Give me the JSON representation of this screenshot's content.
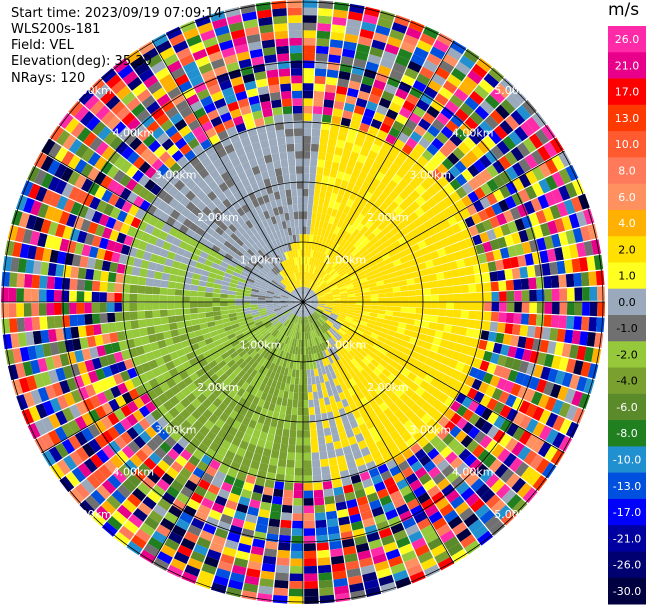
{
  "header": {
    "start_time": "Start time: 2023/09/19 07:09:14",
    "instrument": "WLS200s-181",
    "field": "Field: VEL",
    "elevation": "Elevation(deg): 35.30",
    "nrays": "NRays: 120"
  },
  "colorbar": {
    "unit": "m/s",
    "ticks": [
      "26.0",
      "21.0",
      "17.0",
      "13.0",
      "10.0",
      "8.0",
      "6.0",
      "4.0",
      "2.0",
      "1.0",
      "0.0",
      "-1.0",
      "-2.0",
      "-4.0",
      "-6.0",
      "-8.0",
      "-10.0",
      "-13.0",
      "-17.0",
      "-21.0",
      "-26.0",
      "-30.0"
    ],
    "colors": [
      "#ff2aa8",
      "#e8008a",
      "#ff0000",
      "#ff3a00",
      "#ff5a30",
      "#ff7a5a",
      "#ff9060",
      "#ffb000",
      "#ffe000",
      "#ffff20",
      "#9aaabc",
      "#707070",
      "#96c83c",
      "#7aa030",
      "#5a8a2a",
      "#208020",
      "#2090d0",
      "#0050e0",
      "#0000ff",
      "#0000a0",
      "#000070",
      "#000040"
    ]
  },
  "chart_data": {
    "type": "heatmap",
    "subtype": "ppi-radial-velocity",
    "field": "VEL",
    "units": "m/s",
    "nrays": 120,
    "elevation_deg": 35.3,
    "range_rings_km": [
      1.0,
      2.0,
      3.0,
      4.0,
      5.0
    ],
    "ring_labels": [
      "1.00km",
      "2.00km",
      "3.00km",
      "4.00km",
      "5.00km"
    ],
    "clean_data_max_range_km": 3.0,
    "velocity_pattern": "positive (2.0 to 4.0 m/s, yellow) toward the north and east; negative (-1.0 to -4.0 m/s, green) toward the south and west; near-zero (grey) band from the north-west around the west; noisy values beyond ~3 km",
    "colorbar_range": [
      -30.0,
      26.0
    ]
  }
}
